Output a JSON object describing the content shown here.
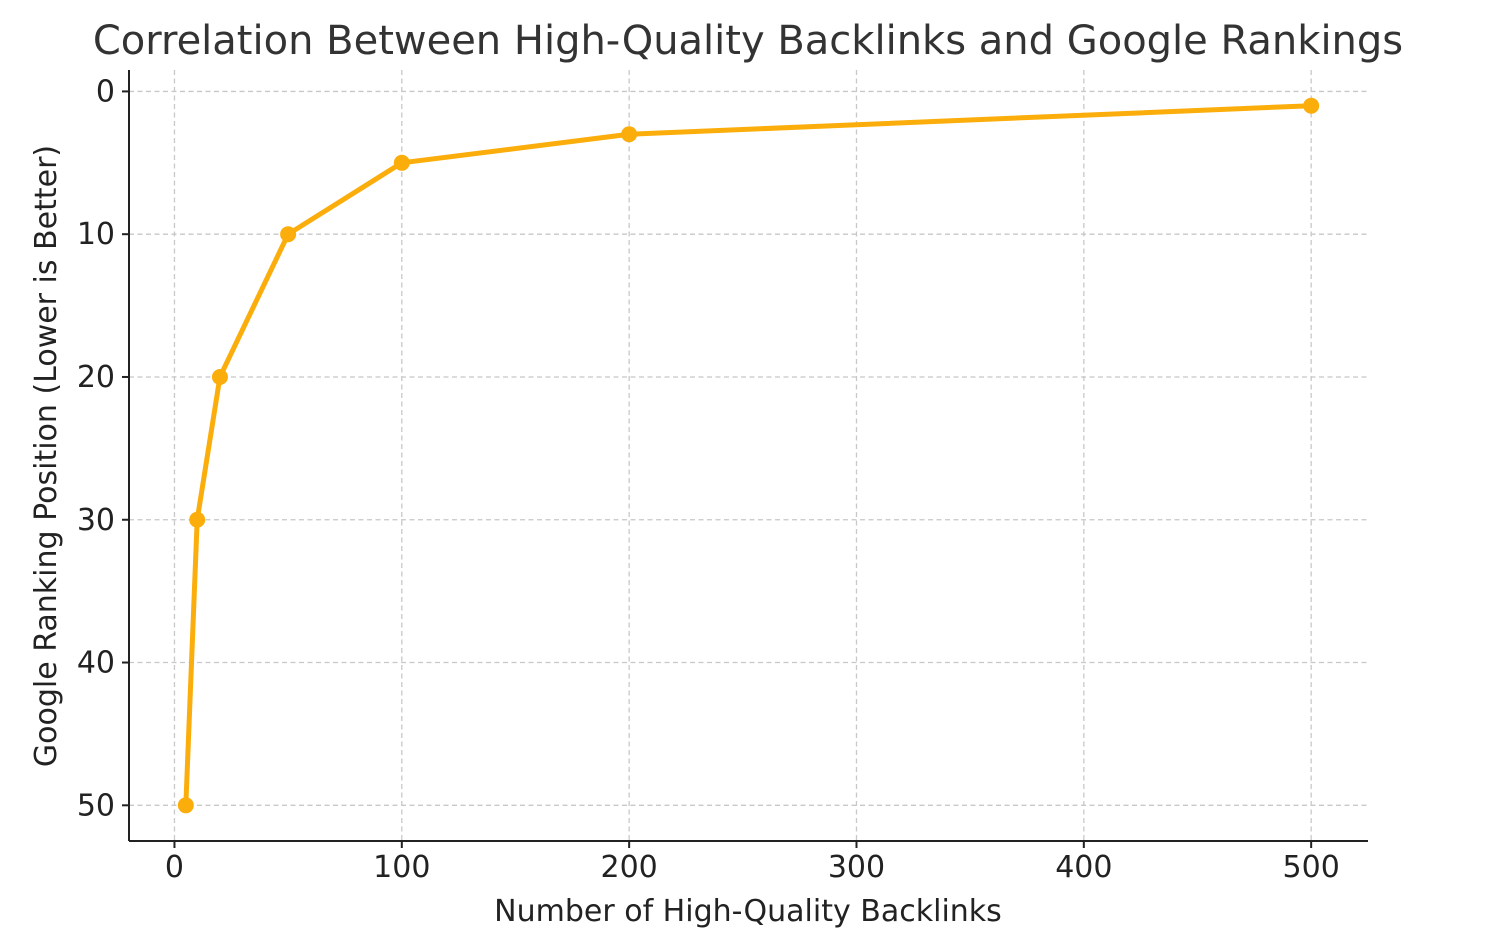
{
  "chart_data": {
    "type": "line",
    "title": "Correlation Between High-Quality Backlinks and Google Rankings",
    "xlabel": "Number of High-Quality Backlinks",
    "ylabel": "Google Ranking Position (Lower is Better)",
    "x": [
      5,
      10,
      20,
      50,
      100,
      200,
      500
    ],
    "series": [
      {
        "name": "",
        "values": [
          50,
          30,
          20,
          10,
          5,
          3,
          1
        ],
        "color": "#FBAD0B"
      }
    ],
    "xlim": [
      -20,
      525
    ],
    "ylim": [
      52.5,
      -1.5
    ],
    "y_inverted": true,
    "xticks": [
      0,
      100,
      200,
      300,
      400,
      500
    ],
    "yticks": [
      0,
      10,
      20,
      30,
      40,
      50
    ],
    "grid": true,
    "markers": true
  }
}
